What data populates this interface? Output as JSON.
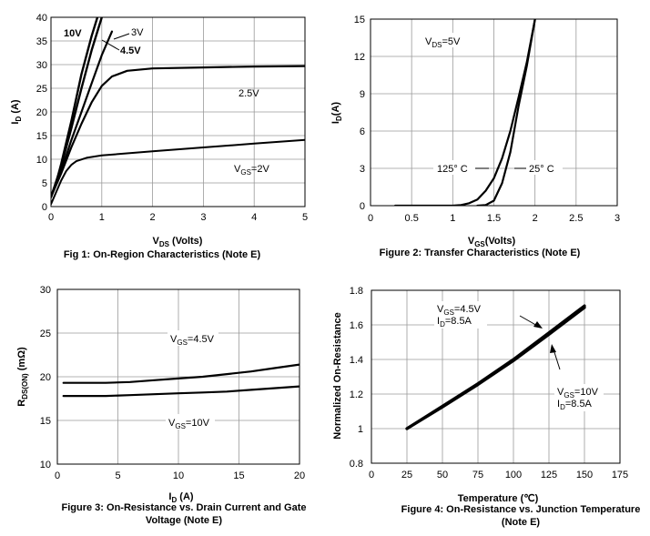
{
  "chart_data": [
    {
      "type": "line",
      "caption": "Fig 1: On-Region Characteristics (Note E)",
      "xlabel": {
        "main": "V",
        "sub": "DS",
        "rest": " (Volts)"
      },
      "ylabel": {
        "main": "I",
        "sub": "D",
        "rest": " (A)"
      },
      "xlim": [
        0,
        5
      ],
      "ylim": [
        0,
        40
      ],
      "xticks": [
        "0",
        "1",
        "2",
        "3",
        "4",
        "5"
      ],
      "yticks": [
        "0",
        "5",
        "10",
        "15",
        "20",
        "25",
        "30",
        "35",
        "40"
      ],
      "grid": true,
      "series": [
        {
          "name": "10V",
          "x": [
            0,
            0.1,
            0.2,
            0.4,
            0.6,
            0.8,
            1.0
          ],
          "y": [
            2,
            5,
            9,
            18,
            28,
            36,
            43
          ]
        },
        {
          "name": "4.5V",
          "x": [
            0,
            0.2,
            0.4,
            0.6,
            0.8,
            1.0,
            1.1
          ],
          "y": [
            2,
            8.5,
            16.5,
            25,
            33,
            40,
            44
          ]
        },
        {
          "name": "3V",
          "x": [
            0,
            0.2,
            0.4,
            0.6,
            0.8,
            1.0,
            1.2
          ],
          "y": [
            2,
            7.5,
            14,
            20,
            26,
            32,
            37
          ]
        },
        {
          "name": "2.5V",
          "x": [
            0,
            0.2,
            0.4,
            0.6,
            0.8,
            1.0,
            1.2,
            1.5,
            2.0,
            3.0,
            4.0,
            5.0
          ],
          "y": [
            2,
            7,
            12.5,
            17.5,
            22,
            25.5,
            27.5,
            28.7,
            29.2,
            29.4,
            29.6,
            29.7
          ]
        },
        {
          "name": "VGS=2V",
          "x": [
            0,
            0.1,
            0.2,
            0.3,
            0.4,
            0.5,
            0.7,
            1.0,
            2.0,
            3.0,
            4.0,
            5.0
          ],
          "y": [
            0.5,
            3,
            5.5,
            7.5,
            8.8,
            9.6,
            10.3,
            10.8,
            11.7,
            12.5,
            13.3,
            14.1
          ]
        }
      ],
      "annotations": [
        "10V",
        "3V",
        "4.5V",
        "2.5V",
        "V",
        "GS",
        "=2V"
      ]
    },
    {
      "type": "line",
      "caption": "Figure 2: Transfer Characteristics (Note E)",
      "xlabel": {
        "main": "V",
        "sub": "GS",
        "rest": "(Volts)"
      },
      "ylabel": {
        "main": "I",
        "sub": "D",
        "rest": "(A)"
      },
      "xlim": [
        0,
        3
      ],
      "ylim": [
        0,
        15
      ],
      "xticks": [
        "0",
        "0.5",
        "1",
        "1.5",
        "2",
        "2.5",
        "3"
      ],
      "yticks": [
        "0",
        "3",
        "6",
        "9",
        "12",
        "15"
      ],
      "grid": true,
      "series": [
        {
          "name": "125° C",
          "x": [
            0.3,
            1.0,
            1.1,
            1.2,
            1.3,
            1.4,
            1.5,
            1.6,
            1.7,
            1.8,
            1.9,
            2.0
          ],
          "y": [
            0,
            0,
            0.05,
            0.2,
            0.5,
            1.2,
            2.2,
            3.8,
            6.0,
            8.7,
            11.5,
            15
          ]
        },
        {
          "name": "25° C",
          "x": [
            1.3,
            1.4,
            1.5,
            1.6,
            1.7,
            1.8,
            1.9,
            2.0
          ],
          "y": [
            0,
            0.05,
            0.4,
            1.8,
            4.3,
            8.0,
            11.2,
            15
          ]
        }
      ],
      "annotations": [
        "V",
        "DS",
        "=5V",
        "125° C",
        "25° C"
      ]
    },
    {
      "type": "line",
      "caption": [
        "Figure 3: On-Resistance vs. Drain Current and Gate",
        "Voltage (Note E)"
      ],
      "xlabel": {
        "main": "I",
        "sub": "D",
        "rest": " (A)"
      },
      "ylabel": {
        "main": "R",
        "sub": "DS(ON)",
        "rest": " (mΩ)"
      },
      "xlim": [
        0,
        20
      ],
      "ylim": [
        10,
        30
      ],
      "xticks": [
        "0",
        "5",
        "10",
        "15",
        "20"
      ],
      "yticks": [
        "10",
        "15",
        "20",
        "25",
        "30"
      ],
      "grid": true,
      "series": [
        {
          "name": "VGS=4.5V",
          "x": [
            0.5,
            2,
            4,
            6,
            8,
            10,
            12,
            14,
            16,
            18,
            20
          ],
          "y": [
            19.3,
            19.3,
            19.3,
            19.4,
            19.6,
            19.8,
            20.0,
            20.3,
            20.6,
            21.0,
            21.4
          ]
        },
        {
          "name": "VGS=10V",
          "x": [
            0.5,
            2,
            4,
            6,
            8,
            10,
            12,
            14,
            16,
            18,
            20
          ],
          "y": [
            17.8,
            17.8,
            17.8,
            17.9,
            18.0,
            18.1,
            18.2,
            18.3,
            18.5,
            18.7,
            18.9
          ]
        }
      ],
      "annotations": [
        "V",
        "GS",
        "=4.5V",
        "V",
        "GS",
        "=10V"
      ]
    },
    {
      "type": "line",
      "caption": [
        "Figure 4: On-Resistance vs. Junction Temperature",
        "(Note E)"
      ],
      "xlabel": {
        "main": "Temperature (℃)"
      },
      "ylabel": {
        "main": "Normalized On-Resistance"
      },
      "xlim": [
        0,
        175
      ],
      "ylim": [
        0.8,
        1.8
      ],
      "xticks": [
        "0",
        "25",
        "50",
        "75",
        "100",
        "125",
        "150",
        "175"
      ],
      "yticks": [
        "0.8",
        "1",
        "1.2",
        "1.4",
        "1.6",
        "1.8"
      ],
      "grid": true,
      "series": [
        {
          "name": "VGS=4.5V, ID=8.5A",
          "x": [
            25,
            50,
            75,
            100,
            125,
            150
          ],
          "y": [
            1.0,
            1.13,
            1.26,
            1.4,
            1.555,
            1.71
          ]
        },
        {
          "name": "VGS=10V, ID=8.5A",
          "x": [
            25,
            50,
            75,
            100,
            125,
            150
          ],
          "y": [
            1.0,
            1.125,
            1.255,
            1.393,
            1.545,
            1.7
          ]
        }
      ],
      "annotations": [
        "V",
        "GS",
        "=4.5V",
        "I",
        "D",
        "=8.5A",
        "V",
        "GS",
        "=10V",
        "I",
        "D",
        "=8.5A"
      ]
    }
  ]
}
